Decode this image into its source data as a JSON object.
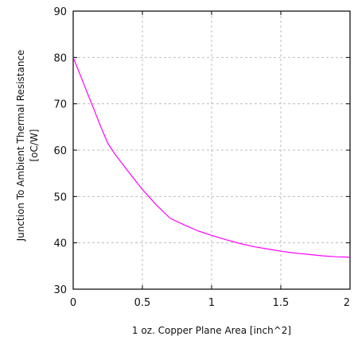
{
  "chart_data": {
    "type": "line",
    "title": "",
    "xlabel": "1 oz. Copper Plane Area [inch^2]",
    "ylabel_line1": "Junction To Ambient Thermal Resistance",
    "ylabel_line2": "[oC/W]",
    "xlim": [
      0,
      2
    ],
    "ylim": [
      30,
      90
    ],
    "x_ticks": [
      0,
      0.5,
      1,
      1.5,
      2
    ],
    "x_tick_labels": [
      "0",
      "0.5",
      "1",
      "1.5",
      "2"
    ],
    "y_ticks": [
      30,
      40,
      50,
      60,
      70,
      80,
      90
    ],
    "y_tick_labels": [
      "30",
      "40",
      "50",
      "60",
      "70",
      "80",
      "90"
    ],
    "grid": true,
    "series": [
      {
        "color": "#ff00ff",
        "x": [
          0,
          0.05,
          0.1,
          0.15,
          0.2,
          0.25,
          0.3,
          0.4,
          0.5,
          0.6,
          0.7,
          0.8,
          0.9,
          1.0,
          1.1,
          1.2,
          1.3,
          1.4,
          1.5,
          1.6,
          1.7,
          1.8,
          1.9,
          2.0
        ],
        "y": [
          80,
          76.3,
          72.5,
          68.8,
          65.0,
          61.5,
          59.2,
          55.3,
          51.5,
          48.2,
          45.3,
          43.9,
          42.6,
          41.6,
          40.7,
          39.9,
          39.2,
          38.7,
          38.2,
          37.8,
          37.5,
          37.2,
          37.0,
          36.9
        ]
      }
    ]
  }
}
